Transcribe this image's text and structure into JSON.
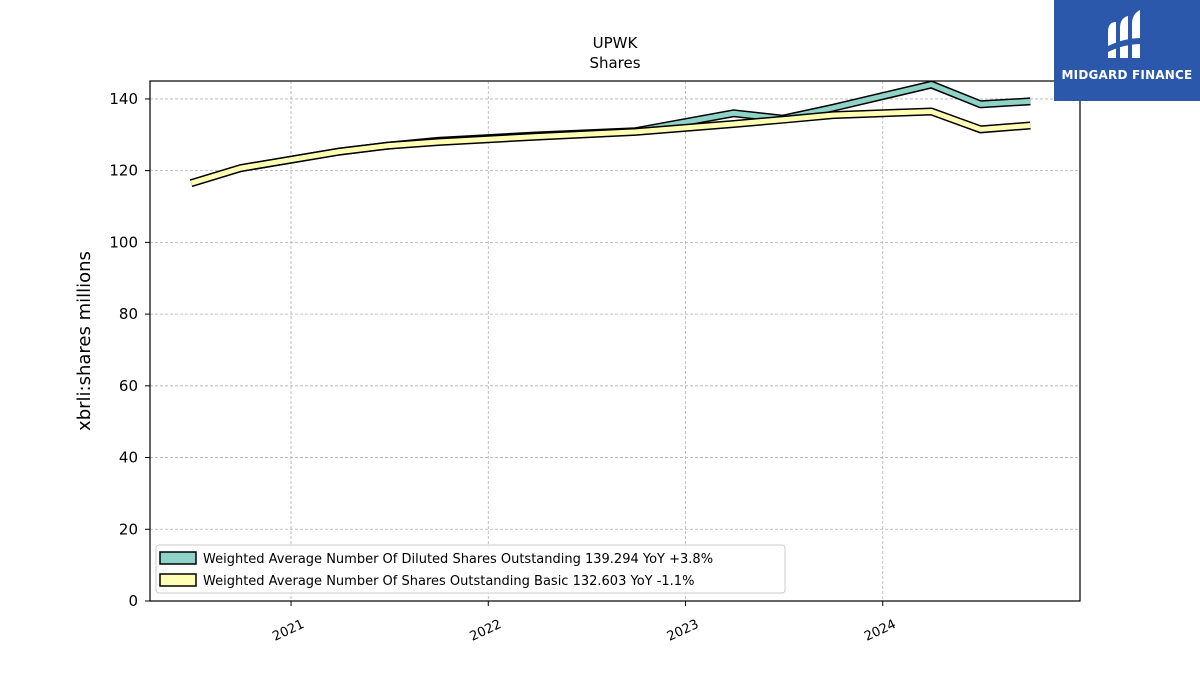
{
  "chart_data": {
    "type": "line",
    "title": "UPWK",
    "subtitle": "Shares",
    "xlabel": "",
    "ylabel": "xbrli:shares millions",
    "x_ticks": [
      "2021",
      "2022",
      "2023",
      "2024"
    ],
    "y_ticks": [
      0,
      20,
      40,
      60,
      80,
      100,
      120,
      140
    ],
    "ylim": [
      0,
      145
    ],
    "xlim": [
      "2020-04-15",
      "2024-12-31"
    ],
    "grid": true,
    "legend_position": "lower-left",
    "series": [
      {
        "name": "Weighted Average Number Of Diluted Shares Outstanding  139.294 YoY +3.8%",
        "color": "#8dd3c7",
        "points": [
          [
            "2020-06-30",
            116.5
          ],
          [
            "2020-09-30",
            120.7
          ],
          [
            "2021-03-31",
            125.3
          ],
          [
            "2021-06-30",
            127.0
          ],
          [
            "2021-09-30",
            128.3
          ],
          [
            "2022-03-31",
            129.8
          ],
          [
            "2022-09-30",
            131.0
          ],
          [
            "2023-03-31",
            136.0
          ],
          [
            "2023-06-30",
            134.5
          ],
          [
            "2023-09-30",
            137.5
          ],
          [
            "2024-03-31",
            144.0
          ],
          [
            "2024-06-30",
            138.5
          ],
          [
            "2024-09-30",
            139.3
          ]
        ]
      },
      {
        "name": "Weighted Average Number Of Shares Outstanding Basic  132.603 YoY -1.1%",
        "color": "#ffffb3",
        "points": [
          [
            "2020-06-30",
            116.5
          ],
          [
            "2020-09-30",
            120.7
          ],
          [
            "2021-03-31",
            125.3
          ],
          [
            "2021-06-30",
            127.0
          ],
          [
            "2021-09-30",
            128.0
          ],
          [
            "2022-03-31",
            129.5
          ],
          [
            "2022-09-30",
            130.8
          ],
          [
            "2023-03-31",
            133.0
          ],
          [
            "2023-06-30",
            134.2
          ],
          [
            "2023-09-30",
            135.5
          ],
          [
            "2024-03-31",
            136.5
          ],
          [
            "2024-06-30",
            131.5
          ],
          [
            "2024-09-30",
            132.6
          ]
        ]
      }
    ]
  },
  "logo": {
    "text": "MIDGARD FINANCE",
    "icon": "midgard-logo-icon",
    "color": "#2b58ab"
  }
}
